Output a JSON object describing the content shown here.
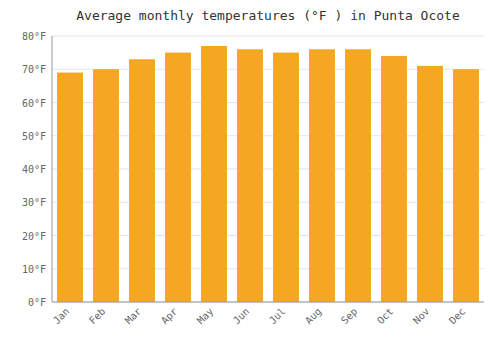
{
  "chart_data": {
    "type": "bar",
    "title": "Average monthly temperatures (°F ) in Punta Ocote",
    "categories": [
      "Jan",
      "Feb",
      "Mar",
      "Apr",
      "May",
      "Jun",
      "Jul",
      "Aug",
      "Sep",
      "Oct",
      "Nov",
      "Dec"
    ],
    "values": [
      69,
      70,
      73,
      75,
      77,
      76,
      75,
      76,
      76,
      74,
      71,
      70
    ],
    "color": "#F5A623",
    "ylim": [
      0,
      80
    ],
    "yticks": [
      {
        "value": 0,
        "label": "0°F"
      },
      {
        "value": 10,
        "label": "10°F"
      },
      {
        "value": 20,
        "label": "20°F"
      },
      {
        "value": 30,
        "label": "30°F"
      },
      {
        "value": 40,
        "label": "40°F"
      },
      {
        "value": 50,
        "label": "50°F"
      },
      {
        "value": 60,
        "label": "60°F"
      },
      {
        "value": 70,
        "label": "70°F"
      },
      {
        "value": 80,
        "label": "80°F"
      }
    ],
    "grid": true
  }
}
